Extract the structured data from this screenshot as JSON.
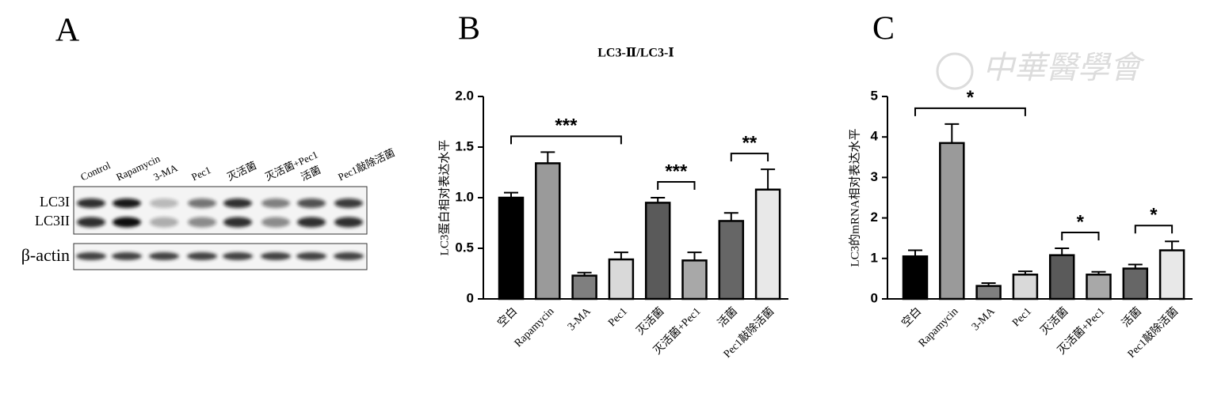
{
  "blot": {
    "label": "A",
    "lanes": [
      "Control",
      "Rapamycin",
      "3-MA",
      "Pec1",
      "灭活菌",
      "灭活菌+Pec1",
      "活菌",
      "Pec1敲除活菌"
    ],
    "bands": [
      "LC3I",
      "LC3II"
    ],
    "loading": "β-actin"
  },
  "watermark": "中華醫學會",
  "chart_data": [
    {
      "type": "bar",
      "label": "B",
      "title": "LC3-Ⅱ/LC3-Ⅰ",
      "ylabel": "LC3蛋白相对表达水平",
      "categories": [
        "空白",
        "Rapamycin",
        "3-MA",
        "Pec1",
        "灭活菌",
        "灭活菌+Pec1",
        "活菌",
        "Pec1敲除活菌"
      ],
      "values": [
        1.0,
        1.34,
        0.23,
        0.39,
        0.95,
        0.38,
        0.77,
        1.08
      ],
      "errors": [
        0.05,
        0.11,
        0.03,
        0.07,
        0.05,
        0.08,
        0.08,
        0.2
      ],
      "colors": [
        "#000000",
        "#9a9a9a",
        "#7f7f7f",
        "#d9d9d9",
        "#5a5a5a",
        "#a8a8a8",
        "#666666",
        "#e8e8e8"
      ],
      "ylim": [
        0,
        2
      ],
      "yticks": [
        0,
        0.5,
        {
          "value": 1,
          "label": "1.0"
        },
        1.5,
        {
          "value": 2,
          "label": "2.0"
        }
      ],
      "annotations": [
        {
          "text": "***",
          "between": [
            "空白",
            "Pec1"
          ]
        },
        {
          "text": "***",
          "between": [
            "灭活菌",
            "灭活菌+Pec1"
          ]
        },
        {
          "text": "**",
          "between": [
            "活菌",
            "Pec1敲除活菌"
          ]
        }
      ]
    },
    {
      "type": "bar",
      "label": "C",
      "ylabel": "LC3的mRNA相对表达水平",
      "categories": [
        "空白",
        "Rapamycin",
        "3-MA",
        "Pec1",
        "灭活菌",
        "灭活菌+Pec1",
        "活菌",
        "Pec1敲除活菌"
      ],
      "values": [
        1.05,
        3.85,
        0.32,
        0.6,
        1.08,
        0.6,
        0.75,
        1.2
      ],
      "errors": [
        0.15,
        0.47,
        0.07,
        0.08,
        0.17,
        0.07,
        0.1,
        0.22
      ],
      "colors": [
        "#000000",
        "#9a9a9a",
        "#7f7f7f",
        "#d9d9d9",
        "#5a5a5a",
        "#a8a8a8",
        "#666666",
        "#e8e8e8"
      ],
      "ylim": [
        0,
        5
      ],
      "yticks": [
        0,
        1,
        2,
        3,
        4,
        5
      ],
      "annotations": [
        {
          "text": "*",
          "between": [
            "空白",
            "Pec1"
          ]
        },
        {
          "text": "*",
          "between": [
            "灭活菌",
            "灭活菌+Pec1"
          ]
        },
        {
          "text": "*",
          "between": [
            "活菌",
            "Pec1敲除活菌"
          ]
        }
      ]
    }
  ]
}
